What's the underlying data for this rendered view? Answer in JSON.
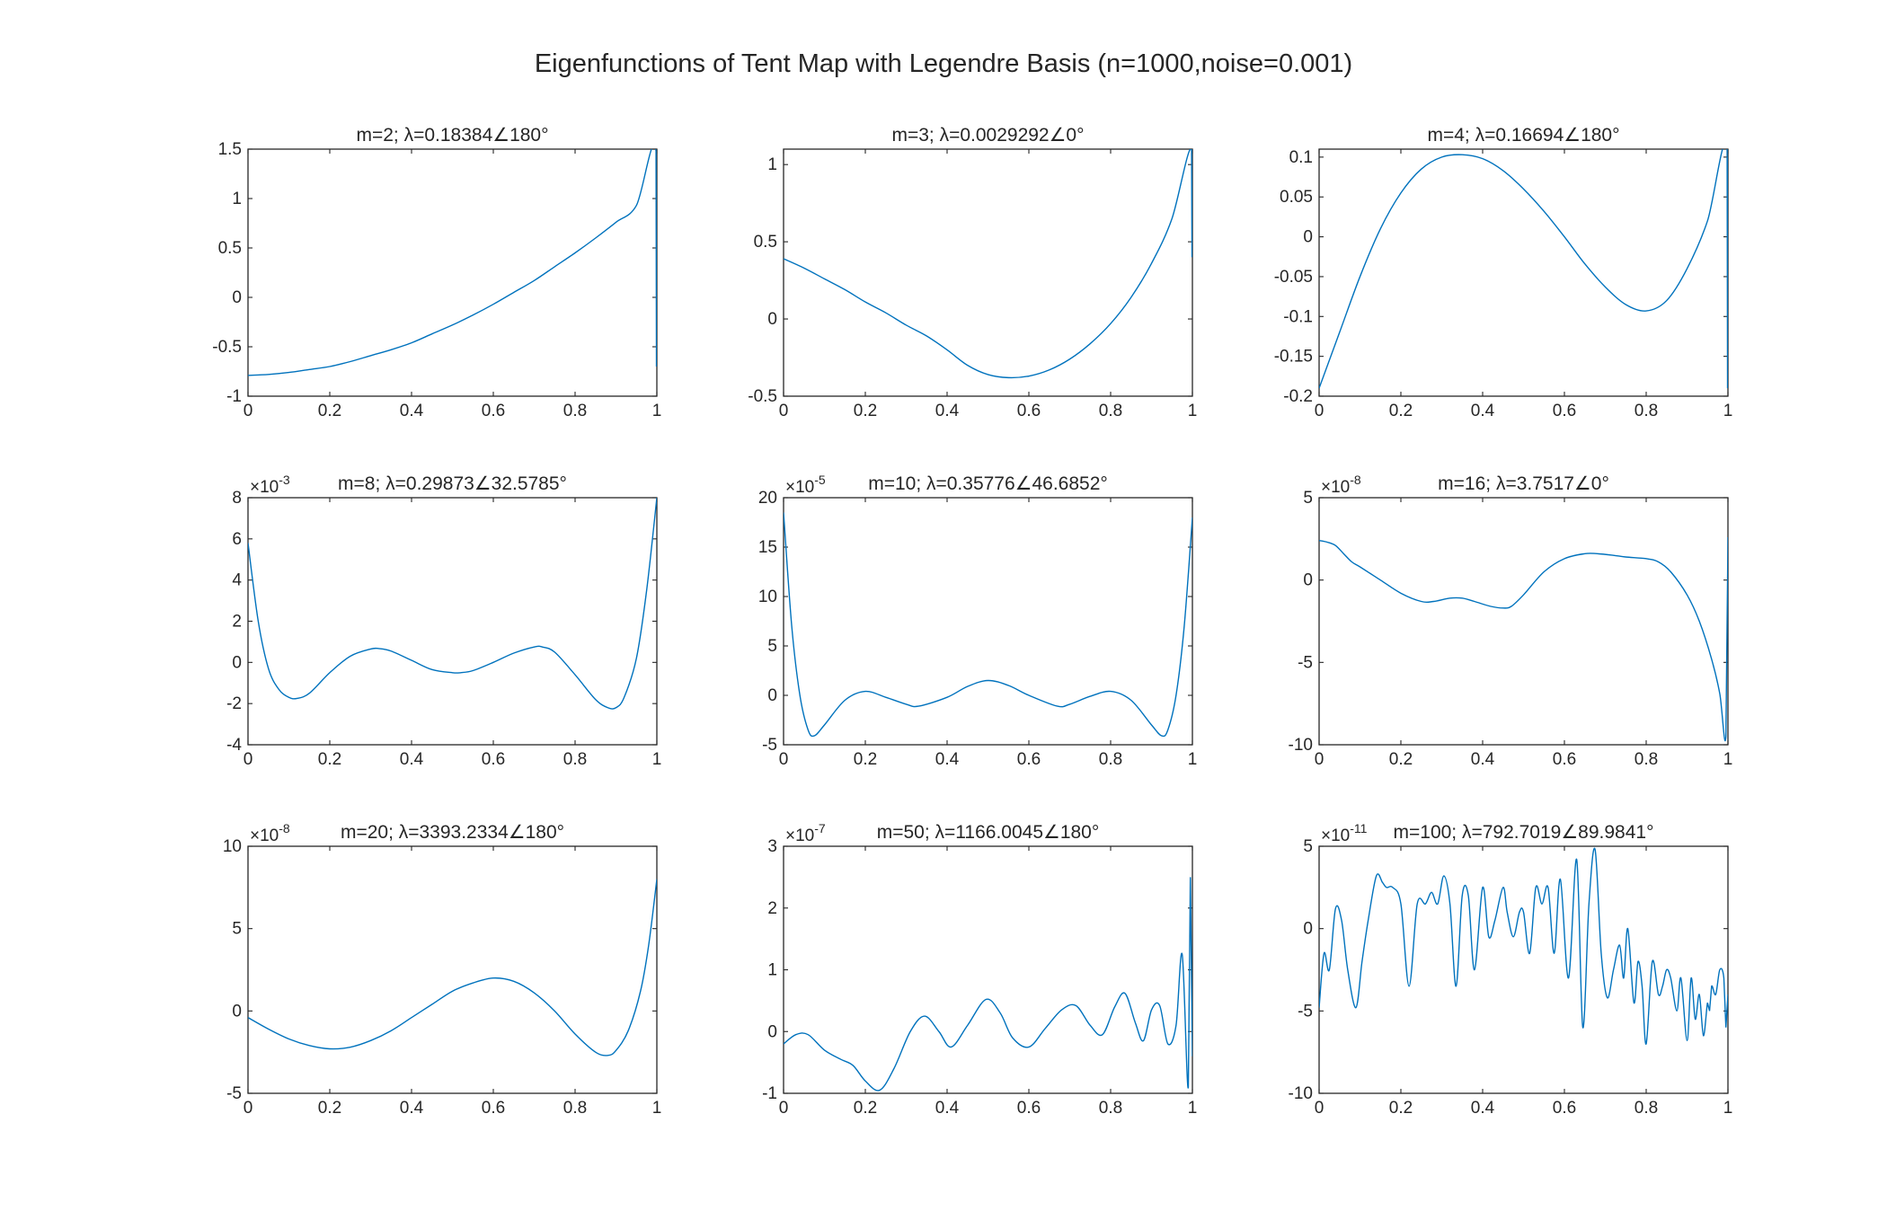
{
  "figure": {
    "title": "Eigenfunctions of Tent Map with Legendre Basis (n=1000,noise=0.001)",
    "line_color": "#0072BD"
  },
  "chart_data": [
    {
      "type": "line",
      "title": "m=2; λ=0.18384∠180°",
      "exponent_label": "",
      "xlim": [
        0,
        1
      ],
      "ylim": [
        -1,
        1.5
      ],
      "xticks": [
        "0",
        "0.2",
        "0.4",
        "0.6",
        "0.8",
        "1"
      ],
      "yticks": [
        "-1",
        "-0.5",
        "0",
        "0.5",
        "1",
        "1.5"
      ],
      "ytick_values": [
        -1,
        -0.5,
        0,
        0.5,
        1,
        1.5
      ],
      "x": [
        0,
        0.05,
        0.1,
        0.15,
        0.2,
        0.25,
        0.3,
        0.35,
        0.4,
        0.45,
        0.5,
        0.55,
        0.6,
        0.65,
        0.7,
        0.75,
        0.8,
        0.85,
        0.9,
        0.95,
        0.998,
        0.999,
        1
      ],
      "y": [
        -0.79,
        -0.78,
        -0.76,
        -0.73,
        -0.7,
        -0.65,
        -0.59,
        -0.53,
        -0.46,
        -0.37,
        -0.28,
        -0.18,
        -0.07,
        0.05,
        0.17,
        0.31,
        0.45,
        0.6,
        0.76,
        0.93,
        1.48,
        -0.7,
        0.5
      ]
    },
    {
      "type": "line",
      "title": "m=3; λ=0.0029292∠0°",
      "exponent_label": "",
      "xlim": [
        0,
        1
      ],
      "ylim": [
        -0.5,
        1.1
      ],
      "xticks": [
        "0",
        "0.2",
        "0.4",
        "0.6",
        "0.8",
        "1"
      ],
      "yticks": [
        "-0.5",
        "0",
        "0.5",
        "1"
      ],
      "ytick_values": [
        -0.5,
        0,
        0.5,
        1
      ],
      "x": [
        0,
        0.05,
        0.1,
        0.15,
        0.2,
        0.25,
        0.3,
        0.35,
        0.4,
        0.45,
        0.5,
        0.55,
        0.6,
        0.65,
        0.7,
        0.75,
        0.8,
        0.85,
        0.9,
        0.95,
        0.998,
        0.999,
        1
      ],
      "y": [
        0.39,
        0.33,
        0.26,
        0.19,
        0.11,
        0.04,
        -0.04,
        -0.11,
        -0.2,
        -0.3,
        -0.36,
        -0.38,
        -0.37,
        -0.33,
        -0.26,
        -0.16,
        -0.03,
        0.14,
        0.36,
        0.65,
        1.1,
        0.4,
        0.9
      ]
    },
    {
      "type": "line",
      "title": "m=4; λ=0.16694∠180°",
      "exponent_label": "",
      "xlim": [
        0,
        1
      ],
      "ylim": [
        -0.2,
        0.11
      ],
      "xticks": [
        "0",
        "0.2",
        "0.4",
        "0.6",
        "0.8",
        "1"
      ],
      "yticks": [
        "-0.2",
        "-0.15",
        "-0.1",
        "-0.05",
        "0",
        "0.05",
        "0.1"
      ],
      "ytick_values": [
        -0.2,
        -0.15,
        -0.1,
        -0.05,
        0,
        0.05,
        0.1
      ],
      "x": [
        0,
        0.05,
        0.1,
        0.15,
        0.2,
        0.25,
        0.3,
        0.35,
        0.4,
        0.45,
        0.5,
        0.55,
        0.6,
        0.65,
        0.7,
        0.75,
        0.8,
        0.85,
        0.9,
        0.95,
        0.998,
        0.999,
        1
      ],
      "y": [
        -0.19,
        -0.12,
        -0.05,
        0.01,
        0.055,
        0.085,
        0.1,
        0.103,
        0.098,
        0.083,
        0.06,
        0.032,
        0.0,
        -0.034,
        -0.063,
        -0.085,
        -0.093,
        -0.08,
        -0.04,
        0.02,
        0.11,
        -0.19,
        0.1
      ]
    },
    {
      "type": "line",
      "title": "m=8; λ=0.29873∠32.5785°",
      "exponent_label": "-3",
      "xlim": [
        0,
        1
      ],
      "ylim": [
        -4,
        8
      ],
      "xticks": [
        "0",
        "0.2",
        "0.4",
        "0.6",
        "0.8",
        "1"
      ],
      "yticks": [
        "-4",
        "-2",
        "0",
        "2",
        "4",
        "6",
        "8"
      ],
      "ytick_values": [
        -4,
        -2,
        0,
        2,
        4,
        6,
        8
      ],
      "x": [
        0,
        0.025,
        0.05,
        0.075,
        0.1,
        0.12,
        0.15,
        0.2,
        0.25,
        0.3,
        0.32,
        0.35,
        0.4,
        0.45,
        0.5,
        0.52,
        0.55,
        0.6,
        0.65,
        0.7,
        0.72,
        0.75,
        0.8,
        0.85,
        0.88,
        0.9,
        0.92,
        0.95,
        0.975,
        1
      ],
      "y": [
        5.8,
        2.0,
        -0.3,
        -1.3,
        -1.7,
        -1.75,
        -1.5,
        -0.5,
        0.3,
        0.65,
        0.67,
        0.55,
        0.1,
        -0.35,
        -0.5,
        -0.5,
        -0.4,
        0.0,
        0.45,
        0.75,
        0.75,
        0.5,
        -0.6,
        -1.8,
        -2.2,
        -2.2,
        -1.7,
        0.2,
        3.5,
        8.0
      ]
    },
    {
      "type": "line",
      "title": "m=10; λ=0.35776∠46.6852°",
      "exponent_label": "-5",
      "xlim": [
        0,
        1
      ],
      "ylim": [
        -5,
        20
      ],
      "xticks": [
        "0",
        "0.2",
        "0.4",
        "0.6",
        "0.8",
        "1"
      ],
      "yticks": [
        "-5",
        "0",
        "5",
        "10",
        "15",
        "20"
      ],
      "ytick_values": [
        -5,
        0,
        5,
        10,
        15,
        20
      ],
      "x": [
        0,
        0.02,
        0.04,
        0.06,
        0.075,
        0.1,
        0.15,
        0.2,
        0.25,
        0.3,
        0.33,
        0.4,
        0.45,
        0.5,
        0.55,
        0.6,
        0.67,
        0.7,
        0.75,
        0.8,
        0.85,
        0.9,
        0.925,
        0.94,
        0.96,
        0.98,
        1
      ],
      "y": [
        18.5,
        7.0,
        0.0,
        -3.5,
        -4.1,
        -3.0,
        -0.5,
        0.4,
        -0.2,
        -0.9,
        -1.1,
        -0.2,
        0.9,
        1.5,
        1.0,
        0.0,
        -1.1,
        -0.9,
        -0.1,
        0.4,
        -0.5,
        -3.0,
        -4.1,
        -3.5,
        0.0,
        7.0,
        18.0
      ]
    },
    {
      "type": "line",
      "title": "m=16; λ=3.7517∠0°",
      "exponent_label": "-8",
      "xlim": [
        0,
        1
      ],
      "ylim": [
        -10,
        5
      ],
      "xticks": [
        "0",
        "0.2",
        "0.4",
        "0.6",
        "0.8",
        "1"
      ],
      "yticks": [
        "-10",
        "-5",
        "0",
        "5"
      ],
      "ytick_values": [
        -10,
        -5,
        0,
        5
      ],
      "x": [
        0,
        0.02,
        0.04,
        0.06,
        0.08,
        0.1,
        0.15,
        0.2,
        0.25,
        0.28,
        0.32,
        0.35,
        0.38,
        0.42,
        0.45,
        0.47,
        0.5,
        0.55,
        0.6,
        0.65,
        0.68,
        0.72,
        0.75,
        0.8,
        0.83,
        0.86,
        0.9,
        0.93,
        0.96,
        0.98,
        0.995,
        0.999,
        1
      ],
      "y": [
        2.4,
        2.3,
        2.1,
        1.6,
        1.1,
        0.8,
        0.0,
        -0.8,
        -1.3,
        -1.3,
        -1.1,
        -1.1,
        -1.3,
        -1.6,
        -1.7,
        -1.6,
        -0.9,
        0.5,
        1.3,
        1.6,
        1.6,
        1.5,
        1.4,
        1.3,
        1.1,
        0.5,
        -0.9,
        -2.5,
        -4.8,
        -6.9,
        -9.5,
        0.0,
        2.6
      ]
    },
    {
      "type": "line",
      "title": "m=20; λ=3393.2334∠180°",
      "exponent_label": "-8",
      "xlim": [
        0,
        1
      ],
      "ylim": [
        -5,
        10
      ],
      "xticks": [
        "0",
        "0.2",
        "0.4",
        "0.6",
        "0.8",
        "1"
      ],
      "yticks": [
        "-5",
        "0",
        "5",
        "10"
      ],
      "ytick_values": [
        -5,
        0,
        5,
        10
      ],
      "x": [
        0,
        0.05,
        0.1,
        0.15,
        0.2,
        0.25,
        0.3,
        0.35,
        0.4,
        0.45,
        0.5,
        0.55,
        0.6,
        0.65,
        0.7,
        0.75,
        0.8,
        0.85,
        0.88,
        0.9,
        0.93,
        0.96,
        0.98,
        1
      ],
      "y": [
        -0.4,
        -1.1,
        -1.7,
        -2.1,
        -2.3,
        -2.2,
        -1.8,
        -1.2,
        -0.4,
        0.4,
        1.2,
        1.7,
        2.0,
        1.8,
        1.1,
        0.0,
        -1.4,
        -2.5,
        -2.7,
        -2.4,
        -1.2,
        1.2,
        4.0,
        8.0
      ]
    },
    {
      "type": "line",
      "title": "m=50; λ=1166.0045∠180°",
      "exponent_label": "-7",
      "xlim": [
        0,
        1
      ],
      "ylim": [
        -1,
        3
      ],
      "xticks": [
        "0",
        "0.2",
        "0.4",
        "0.6",
        "0.8",
        "1"
      ],
      "yticks": [
        "-1",
        "0",
        "1",
        "2",
        "3"
      ],
      "ytick_values": [
        -1,
        0,
        1,
        2,
        3
      ],
      "x": [
        0,
        0.03,
        0.06,
        0.1,
        0.14,
        0.17,
        0.2,
        0.235,
        0.27,
        0.31,
        0.345,
        0.38,
        0.41,
        0.45,
        0.495,
        0.53,
        0.56,
        0.6,
        0.64,
        0.68,
        0.715,
        0.75,
        0.78,
        0.81,
        0.835,
        0.86,
        0.88,
        0.9,
        0.92,
        0.94,
        0.96,
        0.975,
        0.99,
        0.995,
        1
      ],
      "y": [
        -0.2,
        -0.05,
        -0.05,
        -0.3,
        -0.45,
        -0.55,
        -0.8,
        -0.95,
        -0.6,
        0.0,
        0.25,
        0.0,
        -0.25,
        0.1,
        0.52,
        0.3,
        -0.1,
        -0.25,
        0.05,
        0.35,
        0.42,
        0.1,
        -0.05,
        0.4,
        0.62,
        0.15,
        -0.15,
        0.35,
        0.42,
        -0.2,
        0.1,
        1.25,
        -0.9,
        2.5,
        -0.4
      ]
    },
    {
      "type": "line",
      "title": "m=100; λ=792.7019∠89.9841°",
      "exponent_label": "-11",
      "xlim": [
        0,
        1
      ],
      "ylim": [
        -10,
        5
      ],
      "xticks": [
        "0",
        "0.2",
        "0.4",
        "0.6",
        "0.8",
        "1"
      ],
      "yticks": [
        "-10",
        "-5",
        "0",
        "5"
      ],
      "ytick_values": [
        -10,
        -5,
        0,
        5
      ],
      "x": [
        0,
        0.012,
        0.025,
        0.04,
        0.055,
        0.07,
        0.09,
        0.105,
        0.12,
        0.14,
        0.155,
        0.165,
        0.18,
        0.2,
        0.22,
        0.24,
        0.26,
        0.275,
        0.29,
        0.305,
        0.32,
        0.335,
        0.35,
        0.365,
        0.38,
        0.4,
        0.415,
        0.43,
        0.45,
        0.46,
        0.475,
        0.49,
        0.5,
        0.515,
        0.53,
        0.545,
        0.56,
        0.575,
        0.59,
        0.61,
        0.63,
        0.645,
        0.66,
        0.675,
        0.69,
        0.705,
        0.72,
        0.735,
        0.745,
        0.755,
        0.77,
        0.78,
        0.79,
        0.8,
        0.815,
        0.83,
        0.84,
        0.85,
        0.86,
        0.875,
        0.885,
        0.9,
        0.91,
        0.92,
        0.93,
        0.94,
        0.95,
        0.955,
        0.96,
        0.97,
        0.98,
        0.99,
        0.995,
        1
      ],
      "y": [
        -4.8,
        -1.5,
        -2.5,
        1.2,
        0.5,
        -2.5,
        -4.8,
        -2.0,
        0.5,
        3.2,
        2.8,
        2.5,
        2.5,
        1.5,
        -3.5,
        1.5,
        1.5,
        2.2,
        1.5,
        3.2,
        1.5,
        -3.5,
        2.0,
        2.0,
        -2.5,
        2.5,
        -0.5,
        0.5,
        2.5,
        1.0,
        -0.5,
        1.0,
        1.0,
        -1.5,
        2.5,
        1.5,
        2.5,
        -1.5,
        3.0,
        -3.0,
        4.2,
        -6.0,
        1.5,
        4.8,
        -1.5,
        -4.2,
        -2.5,
        -1.0,
        -3.0,
        0.0,
        -4.5,
        -2.0,
        -3.5,
        -7.0,
        -2.0,
        -4.0,
        -3.5,
        -2.5,
        -3.0,
        -5.0,
        -3.0,
        -6.8,
        -3.0,
        -5.5,
        -4.0,
        -6.5,
        -4.5,
        -5.0,
        -3.5,
        -4.0,
        -2.5,
        -3.0,
        -6.0,
        -4.0
      ]
    }
  ]
}
